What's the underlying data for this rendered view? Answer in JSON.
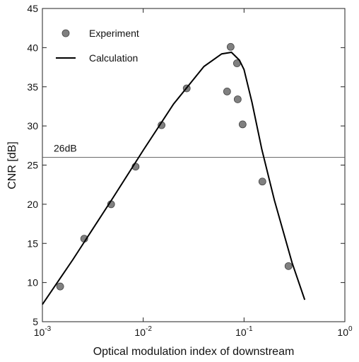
{
  "chart_data": {
    "type": "scatter",
    "xlabel": "Optical modulation index of downstream",
    "ylabel": "CNR  [dB]",
    "xscale": "log",
    "xlim": [
      0.001,
      1
    ],
    "xticks": [
      {
        "value": 0.001,
        "label": "10",
        "exponent": "-3"
      },
      {
        "value": 0.01,
        "label": "10",
        "exponent": "-2"
      },
      {
        "value": 0.1,
        "label": "10",
        "exponent": "-1"
      },
      {
        "value": 1,
        "label": "10",
        "exponent": "0"
      }
    ],
    "ylim": [
      5,
      45
    ],
    "yticks": [
      5,
      10,
      15,
      20,
      25,
      30,
      35,
      40,
      45
    ],
    "legend": "upper left",
    "reference_lines": [
      {
        "value": 26,
        "label": "26dB",
        "color": "#555555"
      }
    ],
    "series": [
      {
        "name": "Experiment",
        "mode": "markers",
        "color": "#808080",
        "x": [
          0.0015,
          0.0026,
          0.0048,
          0.0084,
          0.0152,
          0.027,
          0.0736,
          0.0851,
          0.0679,
          0.0865,
          0.0968,
          0.152,
          0.276
        ],
        "values": [
          9.5,
          15.6,
          20.0,
          24.8,
          30.1,
          34.8,
          40.1,
          38.0,
          34.4,
          33.4,
          30.2,
          22.9,
          12.1
        ]
      },
      {
        "name": "Calculation",
        "mode": "line",
        "color": "#000000",
        "x": [
          0.001,
          0.002,
          0.005,
          0.01,
          0.02,
          0.04,
          0.06,
          0.075,
          0.09,
          0.1,
          0.12,
          0.15,
          0.2,
          0.3,
          0.4
        ],
        "values": [
          7.2,
          12.9,
          20.8,
          26.9,
          32.8,
          37.6,
          39.2,
          39.4,
          38.4,
          37.2,
          33.0,
          27.0,
          20.5,
          12.5,
          7.8
        ]
      }
    ]
  }
}
